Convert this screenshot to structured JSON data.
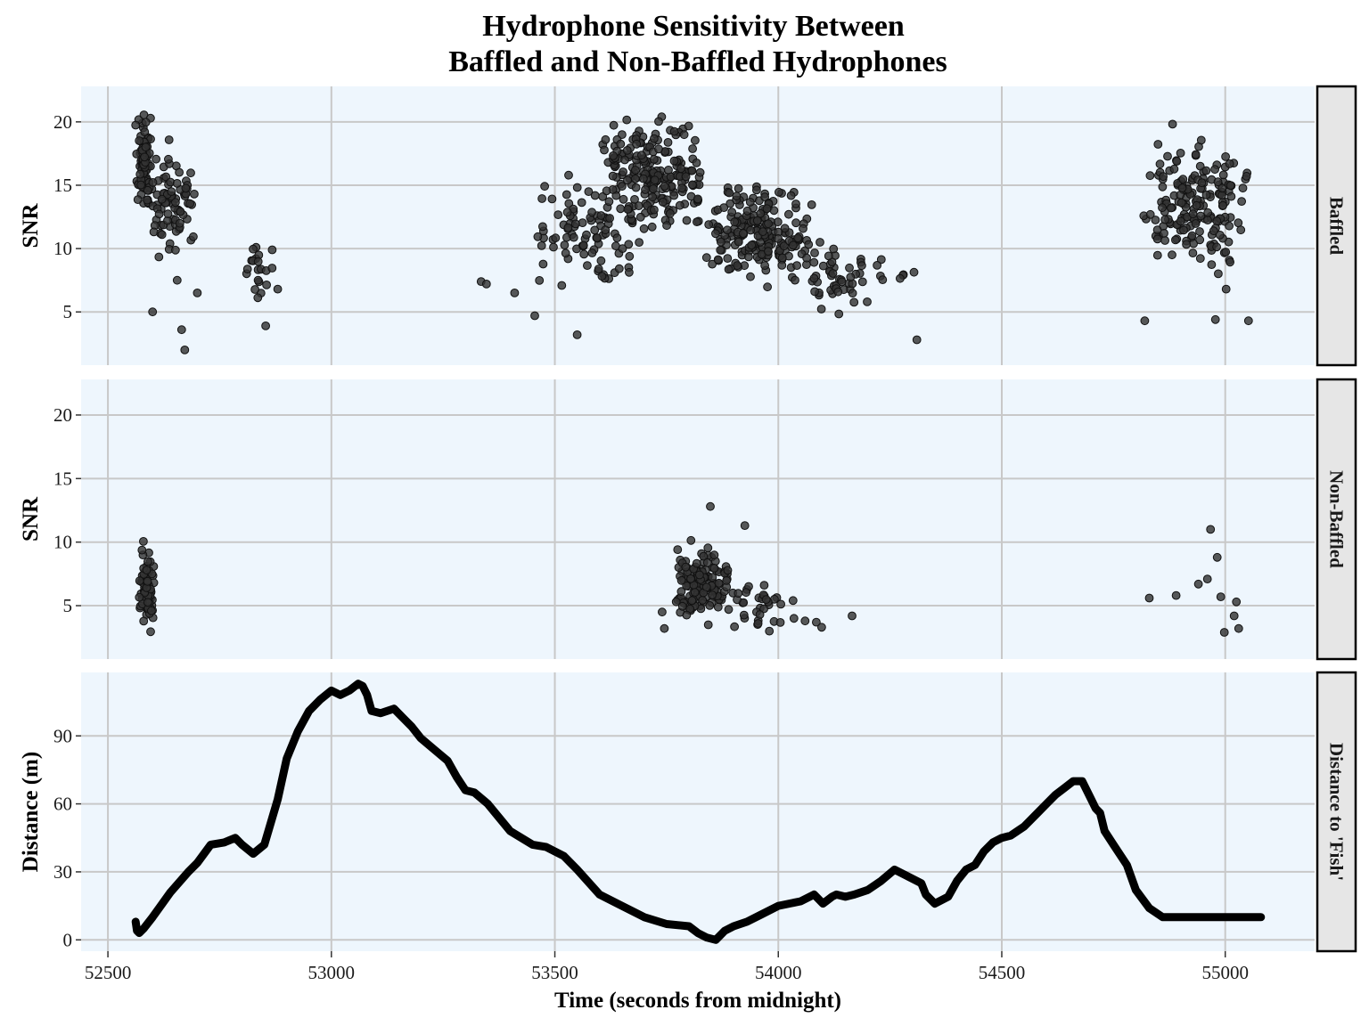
{
  "title_line1": "Hydrophone Sensitivity Between",
  "title_line2": "Baffled and Non-Baffled Hydrophones",
  "colors": {
    "panel_bg": "#eef6fd",
    "grid": "#c8c8c8",
    "point_fill": "#333333",
    "point_stroke": "#111111",
    "line": "#000000",
    "strip_bg": "#e6e6e6"
  },
  "chart_data": [
    {
      "type": "scatter",
      "facet": "Baffled",
      "ylabel": "SNR",
      "xlabel": "",
      "xlim": [
        52440,
        55200
      ],
      "ylim": [
        0.8,
        22.8
      ],
      "x_ticks": [
        52500,
        53000,
        53500,
        54000,
        54500,
        55000
      ],
      "y_ticks": [
        5,
        10,
        15,
        20
      ],
      "y_tick_labels": [
        "5",
        "10",
        "15",
        "20"
      ],
      "clusters": [
        {
          "x_range": [
            52560,
            52600
          ],
          "y_range": [
            12,
            21.8
          ],
          "count": 90
        },
        {
          "x_range": [
            52580,
            52700
          ],
          "y_range": [
            8.5,
            19
          ],
          "count": 80
        },
        {
          "x_range": [
            52800,
            52870
          ],
          "y_range": [
            5.5,
            11.4
          ],
          "count": 20
        },
        {
          "x_range": [
            53450,
            53700
          ],
          "y_range": [
            5,
            17
          ],
          "count": 90
        },
        {
          "x_range": [
            53580,
            53850
          ],
          "y_range": [
            10,
            21.5
          ],
          "count": 220
        },
        {
          "x_range": [
            53800,
            54100
          ],
          "y_range": [
            6.5,
            16
          ],
          "count": 200
        },
        {
          "x_range": [
            53950,
            54320
          ],
          "y_range": [
            4.5,
            11
          ],
          "count": 60
        },
        {
          "x_range": [
            54810,
            55060
          ],
          "y_range": [
            7,
            20.5
          ],
          "count": 180
        }
      ],
      "points": [
        [
          52600,
          5
        ],
        [
          52665,
          3.6
        ],
        [
          52672,
          2
        ],
        [
          52655,
          7.5
        ],
        [
          52700,
          6.5
        ],
        [
          52880,
          6.8
        ],
        [
          52853,
          3.9
        ],
        [
          53335,
          7.4
        ],
        [
          53347,
          7.2
        ],
        [
          53410,
          6.5
        ],
        [
          53455,
          4.7
        ],
        [
          53550,
          3.2
        ],
        [
          54310,
          2.8
        ],
        [
          54820,
          4.3
        ],
        [
          54978,
          4.4
        ],
        [
          55052,
          4.3
        ],
        [
          55002,
          6.8
        ]
      ]
    },
    {
      "type": "scatter",
      "facet": "Non-Baffled",
      "ylabel": "SNR",
      "xlabel": "",
      "xlim": [
        52440,
        55200
      ],
      "ylim": [
        0.8,
        22.8
      ],
      "x_ticks": [
        52500,
        53000,
        53500,
        54000,
        54500,
        55000
      ],
      "y_ticks": [
        5,
        10,
        15,
        20
      ],
      "y_tick_labels": [
        "5",
        "10",
        "15",
        "20"
      ],
      "clusters": [
        {
          "x_range": [
            52565,
            52605
          ],
          "y_range": [
            1.8,
            11.3
          ],
          "count": 70
        },
        {
          "x_range": [
            53760,
            53900
          ],
          "y_range": [
            2.5,
            11
          ],
          "count": 140
        },
        {
          "x_range": [
            53880,
            54020
          ],
          "y_range": [
            2.8,
            7
          ],
          "count": 30
        }
      ],
      "points": [
        [
          53848,
          12.8
        ],
        [
          53925,
          11.3
        ],
        [
          53745,
          3.2
        ],
        [
          53740,
          4.5
        ],
        [
          53980,
          3.0
        ],
        [
          54035,
          4.0
        ],
        [
          54060,
          3.8
        ],
        [
          54085,
          3.7
        ],
        [
          54097,
          3.3
        ],
        [
          54033,
          5.4
        ],
        [
          54165,
          4.2
        ],
        [
          54830,
          5.6
        ],
        [
          54890,
          5.8
        ],
        [
          54940,
          6.7
        ],
        [
          54967,
          11.0
        ],
        [
          54960,
          7.1
        ],
        [
          54982,
          8.8
        ],
        [
          54990,
          5.7
        ],
        [
          55025,
          5.3
        ],
        [
          55020,
          4.2
        ],
        [
          55030,
          3.2
        ],
        [
          54998,
          2.9
        ]
      ]
    },
    {
      "type": "line",
      "facet": "Distance to 'Fish'",
      "ylabel": "Distance (m)",
      "xlabel": "Time (seconds from midnight)",
      "xlim": [
        52440,
        55200
      ],
      "ylim": [
        -5,
        118
      ],
      "x_ticks": [
        52500,
        53000,
        53500,
        54000,
        54500,
        55000
      ],
      "x_tick_labels": [
        "52500",
        "53000",
        "53500",
        "54000",
        "54500",
        "55000"
      ],
      "y_ticks": [
        0,
        30,
        60,
        90
      ],
      "y_tick_labels": [
        "0",
        "30",
        "60",
        "90"
      ],
      "x": [
        52562,
        52565,
        52570,
        52580,
        52600,
        52640,
        52680,
        52700,
        52730,
        52760,
        52785,
        52800,
        52825,
        52850,
        52880,
        52900,
        52925,
        52950,
        52975,
        53000,
        53020,
        53040,
        53060,
        53070,
        53080,
        53090,
        53110,
        53140,
        53160,
        53180,
        53200,
        53230,
        53260,
        53280,
        53300,
        53320,
        53350,
        53400,
        53450,
        53480,
        53500,
        53520,
        53550,
        53600,
        53650,
        53700,
        53750,
        53800,
        53820,
        53840,
        53860,
        53880,
        53900,
        53930,
        53960,
        54000,
        54050,
        54080,
        54100,
        54120,
        54130,
        54150,
        54170,
        54200,
        54230,
        54260,
        54280,
        54300,
        54320,
        54330,
        54350,
        54380,
        54400,
        54420,
        54440,
        54460,
        54480,
        54500,
        54520,
        54550,
        54580,
        54600,
        54620,
        54640,
        54660,
        54680,
        54700,
        54710,
        54720,
        54730,
        54750,
        54780,
        54800,
        54830,
        54860,
        54880,
        54900,
        54950,
        55000,
        55050,
        55080
      ],
      "y": [
        8,
        4,
        3,
        5,
        10,
        21,
        30,
        34,
        42,
        43,
        45,
        42,
        38,
        42,
        62,
        80,
        92,
        101,
        106,
        110,
        108,
        110,
        113,
        112,
        108,
        101,
        100,
        102,
        98,
        94,
        89,
        84,
        79,
        72,
        66,
        65,
        60,
        48,
        42,
        41,
        39,
        37,
        31,
        20,
        15,
        10,
        7,
        6,
        3,
        1,
        0,
        4,
        6,
        8,
        11,
        15,
        17,
        20,
        16,
        19,
        20,
        19,
        20,
        22,
        26,
        31,
        29,
        27,
        25,
        20,
        16,
        19,
        26,
        31,
        33,
        39,
        43,
        45,
        46,
        50,
        56,
        60,
        64,
        67,
        70,
        70,
        62,
        58,
        56,
        48,
        42,
        33,
        22,
        14,
        10,
        10,
        10,
        10,
        10,
        10,
        10
      ]
    }
  ]
}
